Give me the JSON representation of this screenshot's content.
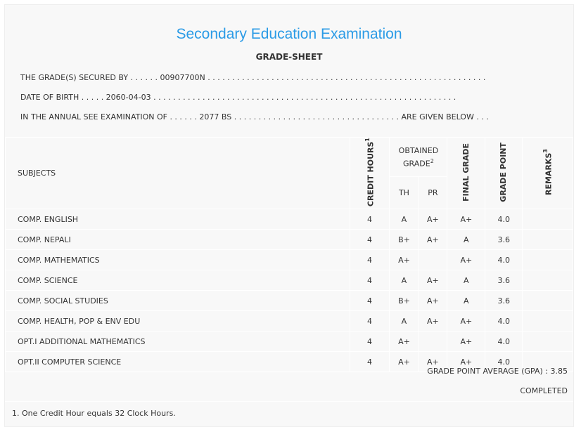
{
  "header": {
    "title": "Secondary Education Examination",
    "subtitle": "GRADE-SHEET"
  },
  "info": {
    "secured_by": "THE GRADE(S) SECURED BY . . . . . . 00907700N . . . . . . . . . . . . . . . . . . . . . . . . . . . . . . . . . . . . . . . . . . . . . . . . . . . . . . . . .",
    "dob": "DATE OF BIRTH . . . . . 2060-04-03 . . . . . . . . . . . . . . . . . . . . . . . . . . . . . . . . . . . . . . . . . . . . . . . . . . . . . . . . . . . . . .",
    "exam": "IN THE ANNUAL SEE EXAMINATION OF . . . . . . 2077 BS . . . . . . . . . . . . . . . . . . . . . . . . . . . . . . . . . . ARE GIVEN BELOW . . ."
  },
  "table": {
    "headers": {
      "subjects": "SUBJECTS",
      "credit": "CREDIT HOURS",
      "credit_sup": "1",
      "obtained": "OBTAINED GRADE",
      "obtained_sup": "2",
      "th": "TH",
      "pr": "PR",
      "final": "FINAL GRADE",
      "point": "GRADE POINT",
      "remarks": "REMARKS",
      "remarks_sup": "3"
    },
    "rows": [
      {
        "subject": "COMP. ENGLISH",
        "credit": "4",
        "th": "A",
        "pr": "A+",
        "final": "A+",
        "point": "4.0"
      },
      {
        "subject": "COMP. NEPALI",
        "credit": "4",
        "th": "B+",
        "pr": "A+",
        "final": "A",
        "point": "3.6"
      },
      {
        "subject": "COMP. MATHEMATICS",
        "credit": "4",
        "th": "A+",
        "pr": "",
        "final": "A+",
        "point": "4.0"
      },
      {
        "subject": "COMP. SCIENCE",
        "credit": "4",
        "th": "A",
        "pr": "A+",
        "final": "A",
        "point": "3.6"
      },
      {
        "subject": "COMP. SOCIAL STUDIES",
        "credit": "4",
        "th": "B+",
        "pr": "A+",
        "final": "A",
        "point": "3.6"
      },
      {
        "subject": "COMP. HEALTH, POP & ENV EDU",
        "credit": "4",
        "th": "A",
        "pr": "A+",
        "final": "A+",
        "point": "4.0"
      },
      {
        "subject": "OPT.I ADDITIONAL MATHEMATICS",
        "credit": "4",
        "th": "A+",
        "pr": "",
        "final": "A+",
        "point": "4.0"
      },
      {
        "subject": "OPT.II COMPUTER SCIENCE",
        "credit": "4",
        "th": "A+",
        "pr": "A+",
        "final": "A+",
        "point": "4.0"
      }
    ]
  },
  "summary": {
    "gpa": "GRADE POINT AVERAGE (GPA) : 3.85",
    "status": "COMPLETED"
  },
  "footnote": "1. One Credit Hour equals 32 Clock Hours."
}
